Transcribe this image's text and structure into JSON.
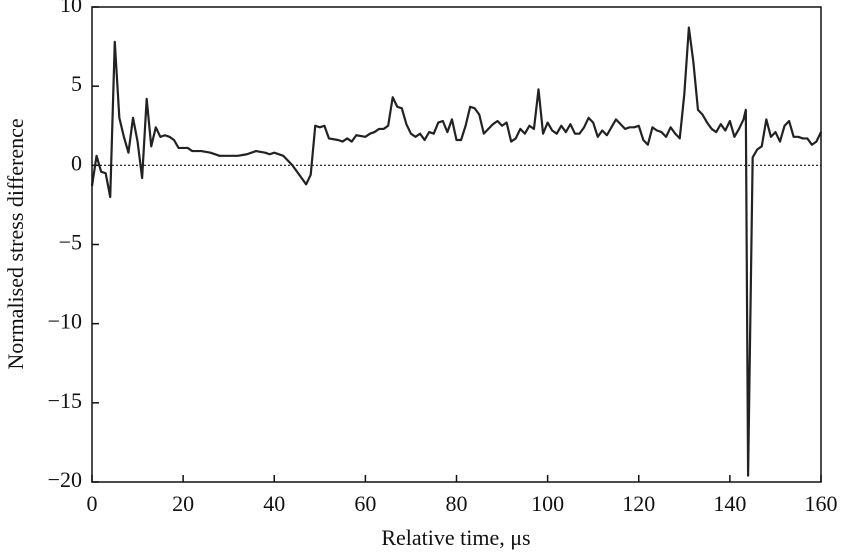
{
  "chart_data": {
    "type": "line",
    "xlabel": "Relative time, μs",
    "ylabel": "Normalised stress difference",
    "x": [
      0,
      1,
      2,
      3,
      4,
      5,
      6,
      7,
      8,
      9,
      10,
      11,
      12,
      13,
      14,
      15,
      16,
      17,
      18,
      19,
      20,
      21,
      22,
      24,
      26,
      28,
      30,
      32,
      34,
      36,
      38,
      39,
      40,
      42,
      44,
      46,
      47,
      48,
      49,
      50,
      51,
      52,
      54,
      55,
      56,
      57,
      58,
      60,
      61,
      62,
      63,
      64,
      65,
      66,
      67,
      68,
      69,
      70,
      71,
      72,
      73,
      74,
      75,
      76,
      77,
      78,
      79,
      80,
      81,
      82,
      83,
      84,
      85,
      86,
      87,
      88,
      89,
      90,
      91,
      92,
      93,
      94,
      95,
      96,
      97,
      98,
      99,
      100,
      101,
      102,
      103,
      104,
      105,
      106,
      107,
      108,
      109,
      110,
      111,
      112,
      113,
      114,
      115,
      116,
      117,
      118,
      119,
      120,
      121,
      122,
      123,
      124,
      125,
      126,
      127,
      128,
      129,
      130,
      131,
      132,
      133,
      134,
      135,
      136,
      137,
      138,
      139,
      140,
      141,
      142,
      143,
      143.5,
      144,
      145,
      146,
      147,
      148,
      149,
      150,
      151,
      152,
      153,
      154,
      155,
      156,
      157,
      158,
      159,
      160
    ],
    "series": [
      {
        "color": "#222222",
        "values": [
          -1.3,
          0.6,
          -0.4,
          -0.5,
          -2.0,
          7.8,
          3.0,
          1.8,
          0.8,
          3.0,
          1.5,
          -0.8,
          4.2,
          1.2,
          2.4,
          1.8,
          1.9,
          1.8,
          1.6,
          1.1,
          1.1,
          1.1,
          0.9,
          0.9,
          0.8,
          0.6,
          0.6,
          0.6,
          0.7,
          0.9,
          0.8,
          0.7,
          0.8,
          0.6,
          0.0,
          -0.8,
          -1.2,
          -0.6,
          2.5,
          2.4,
          2.5,
          1.7,
          1.6,
          1.5,
          1.7,
          1.5,
          1.9,
          1.8,
          2.0,
          2.1,
          2.3,
          2.3,
          2.5,
          4.3,
          3.7,
          3.6,
          2.6,
          2.0,
          1.8,
          2.0,
          1.6,
          2.1,
          2.0,
          2.7,
          2.8,
          2.1,
          2.9,
          1.6,
          1.6,
          2.5,
          3.7,
          3.6,
          3.2,
          2.0,
          2.3,
          2.6,
          2.8,
          2.5,
          2.7,
          1.5,
          1.7,
          2.3,
          2.0,
          2.5,
          2.3,
          4.8,
          2.0,
          2.7,
          2.2,
          2.0,
          2.5,
          2.1,
          2.6,
          2.0,
          2.0,
          2.4,
          3.0,
          2.7,
          1.8,
          2.2,
          1.9,
          2.4,
          2.9,
          2.6,
          2.3,
          2.4,
          2.4,
          2.5,
          1.6,
          1.3,
          2.4,
          2.2,
          2.1,
          1.8,
          2.4,
          2.0,
          1.7,
          4.5,
          8.7,
          6.5,
          3.5,
          3.2,
          2.7,
          2.3,
          2.1,
          2.6,
          2.2,
          2.8,
          1.8,
          2.3,
          2.9,
          3.5,
          -19.6,
          0.5,
          1.0,
          1.2,
          2.9,
          1.8,
          2.1,
          1.5,
          2.5,
          2.8,
          1.8,
          1.8,
          1.7,
          1.7,
          1.3,
          1.5,
          2.1
        ]
      }
    ],
    "reference_line": 0,
    "xlim": [
      0,
      160
    ],
    "xticks": [
      0,
      20,
      40,
      60,
      80,
      100,
      120,
      140,
      160
    ],
    "ylim": [
      -20,
      10
    ],
    "yticks": [
      {
        "value": -20,
        "label": "−20"
      },
      {
        "value": -15,
        "label": "−15"
      },
      {
        "value": -10,
        "label": "−10"
      },
      {
        "value": -5,
        "label": "−5"
      },
      0,
      5,
      10
    ]
  }
}
